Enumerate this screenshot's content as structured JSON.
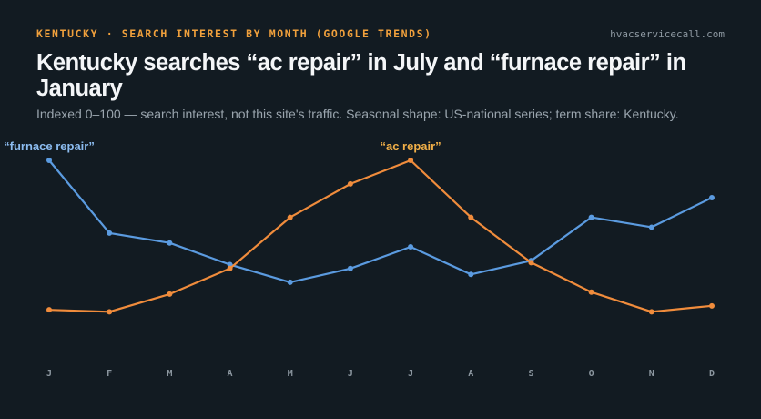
{
  "header": {
    "eyebrow": "KENTUCKY · SEARCH INTEREST BY MONTH (GOOGLE TRENDS)",
    "site": "hvacservicecall.com",
    "title": "Kentucky searches “ac repair” in July and “furnace repair” in January",
    "subtitle": "Indexed 0–100 — search interest, not this site's traffic. Seasonal shape: US-national series; term share: Kentucky."
  },
  "chart_data": {
    "type": "line",
    "categories": [
      "J",
      "F",
      "M",
      "A",
      "M",
      "J",
      "J",
      "A",
      "S",
      "O",
      "N",
      "D"
    ],
    "series": [
      {
        "name": "“furnace repair”",
        "color": "#5b9be0",
        "label_color": "#8cbcf0",
        "values": [
          100,
          63,
          58,
          47,
          38,
          45,
          56,
          42,
          49,
          71,
          66,
          81
        ]
      },
      {
        "name": "“ac repair”",
        "color": "#f08c3c",
        "label_color": "#f2b048",
        "values": [
          24,
          23,
          32,
          45,
          71,
          88,
          100,
          71,
          48,
          33,
          23,
          26
        ]
      }
    ],
    "ylim": [
      0,
      100
    ],
    "grid": false,
    "legend": "inline labels"
  }
}
